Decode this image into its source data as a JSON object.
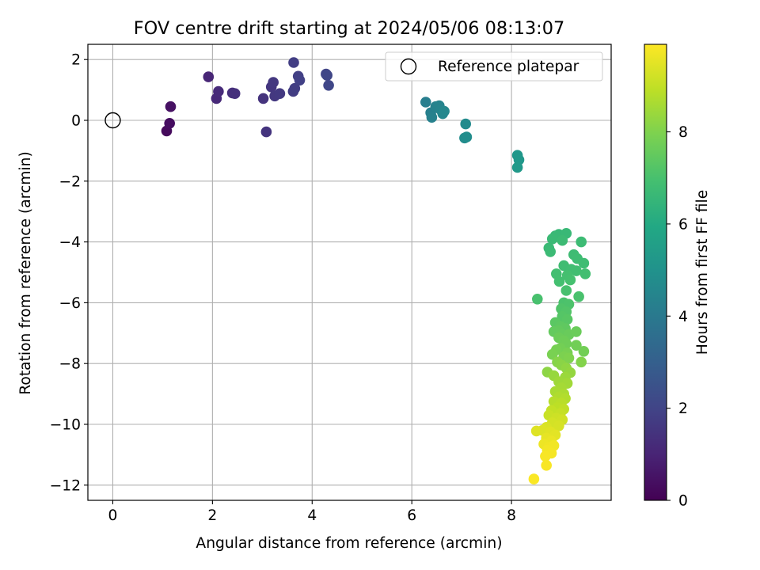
{
  "chart_data": {
    "type": "scatter",
    "title": "FOV centre drift starting at 2024/05/06 08:13:07",
    "xlabel": "Angular distance from reference (arcmin)",
    "ylabel": "Rotation from reference (arcmin)",
    "xlim": [
      -0.5,
      10.0
    ],
    "ylim": [
      -12.5,
      2.5
    ],
    "xticks": [
      "0",
      "2",
      "4",
      "6",
      "8"
    ],
    "yticks": [
      "2",
      "0",
      "−2",
      "−4",
      "−6",
      "−8",
      "−10",
      "−12"
    ],
    "grid": true,
    "legend": {
      "position": "top-right",
      "entries": [
        "Reference platepar"
      ]
    },
    "colorbar": {
      "label": "Hours from first FF file",
      "colormap": "viridis",
      "range": [
        0,
        9.9
      ],
      "ticks": [
        "0",
        "2",
        "4",
        "6",
        "8"
      ]
    },
    "reference": {
      "x": 0,
      "y": 0
    },
    "points": [
      {
        "x": 1.08,
        "y": -0.35,
        "h": 0.25
      },
      {
        "x": 1.14,
        "y": -0.1,
        "h": 0.35
      },
      {
        "x": 1.16,
        "y": 0.45,
        "h": 0.45
      },
      {
        "x": 1.92,
        "y": 1.43,
        "h": 1.05
      },
      {
        "x": 2.08,
        "y": 0.72,
        "h": 1.15
      },
      {
        "x": 2.12,
        "y": 0.95,
        "h": 1.2
      },
      {
        "x": 2.4,
        "y": 0.9,
        "h": 1.3
      },
      {
        "x": 2.45,
        "y": 0.88,
        "h": 1.35
      },
      {
        "x": 3.02,
        "y": 0.72,
        "h": 1.45
      },
      {
        "x": 3.08,
        "y": -0.38,
        "h": 1.5
      },
      {
        "x": 3.18,
        "y": 1.1,
        "h": 1.55
      },
      {
        "x": 3.22,
        "y": 1.25,
        "h": 1.6
      },
      {
        "x": 3.25,
        "y": 0.8,
        "h": 1.62
      },
      {
        "x": 3.35,
        "y": 0.88,
        "h": 1.65
      },
      {
        "x": 3.62,
        "y": 0.95,
        "h": 1.75
      },
      {
        "x": 3.65,
        "y": 1.05,
        "h": 1.78
      },
      {
        "x": 3.63,
        "y": 1.9,
        "h": 1.8
      },
      {
        "x": 3.72,
        "y": 1.45,
        "h": 1.85
      },
      {
        "x": 3.75,
        "y": 1.32,
        "h": 1.9
      },
      {
        "x": 4.28,
        "y": 1.52,
        "h": 2.0
      },
      {
        "x": 4.3,
        "y": 1.48,
        "h": 2.05
      },
      {
        "x": 4.33,
        "y": 1.15,
        "h": 2.1
      },
      {
        "x": 6.28,
        "y": 0.6,
        "h": 4.2
      },
      {
        "x": 6.38,
        "y": 0.25,
        "h": 4.25
      },
      {
        "x": 6.4,
        "y": 0.1,
        "h": 4.3
      },
      {
        "x": 6.48,
        "y": 0.45,
        "h": 4.35
      },
      {
        "x": 6.55,
        "y": 0.48,
        "h": 4.4
      },
      {
        "x": 6.58,
        "y": 0.35,
        "h": 4.45
      },
      {
        "x": 6.62,
        "y": 0.22,
        "h": 4.5
      },
      {
        "x": 6.65,
        "y": 0.3,
        "h": 4.55
      },
      {
        "x": 7.08,
        "y": -0.12,
        "h": 4.7
      },
      {
        "x": 7.06,
        "y": -0.58,
        "h": 4.75
      },
      {
        "x": 7.1,
        "y": -0.55,
        "h": 4.8
      },
      {
        "x": 8.12,
        "y": -1.15,
        "h": 5.2
      },
      {
        "x": 8.15,
        "y": -1.3,
        "h": 5.25
      },
      {
        "x": 8.12,
        "y": -1.55,
        "h": 5.3
      },
      {
        "x": 8.95,
        "y": -3.75,
        "h": 6.6
      },
      {
        "x": 9.1,
        "y": -3.72,
        "h": 6.62
      },
      {
        "x": 8.88,
        "y": -3.8,
        "h": 6.64
      },
      {
        "x": 8.82,
        "y": -3.9,
        "h": 6.66
      },
      {
        "x": 8.75,
        "y": -4.2,
        "h": 6.68
      },
      {
        "x": 8.78,
        "y": -4.32,
        "h": 6.7
      },
      {
        "x": 9.02,
        "y": -3.95,
        "h": 6.72
      },
      {
        "x": 9.4,
        "y": -4.0,
        "h": 6.74
      },
      {
        "x": 9.25,
        "y": -4.42,
        "h": 6.76
      },
      {
        "x": 9.32,
        "y": -4.55,
        "h": 6.78
      },
      {
        "x": 9.45,
        "y": -4.7,
        "h": 6.8
      },
      {
        "x": 9.05,
        "y": -4.78,
        "h": 6.82
      },
      {
        "x": 9.2,
        "y": -4.9,
        "h": 6.84
      },
      {
        "x": 9.3,
        "y": -4.95,
        "h": 6.86
      },
      {
        "x": 9.48,
        "y": -5.05,
        "h": 6.88
      },
      {
        "x": 8.9,
        "y": -5.05,
        "h": 6.9
      },
      {
        "x": 8.96,
        "y": -5.3,
        "h": 6.92
      },
      {
        "x": 9.12,
        "y": -5.1,
        "h": 6.94
      },
      {
        "x": 9.18,
        "y": -5.25,
        "h": 6.96
      },
      {
        "x": 9.1,
        "y": -5.6,
        "h": 6.98
      },
      {
        "x": 8.52,
        "y": -5.88,
        "h": 7.0
      },
      {
        "x": 9.35,
        "y": -5.8,
        "h": 7.02
      },
      {
        "x": 9.05,
        "y": -6.0,
        "h": 7.05
      },
      {
        "x": 9.15,
        "y": -6.05,
        "h": 7.1
      },
      {
        "x": 9.0,
        "y": -6.2,
        "h": 7.15
      },
      {
        "x": 9.1,
        "y": -6.3,
        "h": 7.2
      },
      {
        "x": 9.02,
        "y": -6.45,
        "h": 7.25
      },
      {
        "x": 9.12,
        "y": -6.55,
        "h": 7.3
      },
      {
        "x": 8.88,
        "y": -6.65,
        "h": 7.35
      },
      {
        "x": 8.98,
        "y": -6.78,
        "h": 7.4
      },
      {
        "x": 9.08,
        "y": -6.85,
        "h": 7.45
      },
      {
        "x": 8.95,
        "y": -6.92,
        "h": 7.5
      },
      {
        "x": 8.85,
        "y": -6.95,
        "h": 7.52
      },
      {
        "x": 9.02,
        "y": -7.05,
        "h": 7.55
      },
      {
        "x": 9.15,
        "y": -7.05,
        "h": 7.6
      },
      {
        "x": 9.3,
        "y": -6.95,
        "h": 7.62
      },
      {
        "x": 8.95,
        "y": -7.15,
        "h": 7.65
      },
      {
        "x": 9.05,
        "y": -7.25,
        "h": 7.7
      },
      {
        "x": 9.1,
        "y": -7.35,
        "h": 7.72
      },
      {
        "x": 9.3,
        "y": -7.4,
        "h": 7.75
      },
      {
        "x": 9.45,
        "y": -7.6,
        "h": 7.78
      },
      {
        "x": 8.98,
        "y": -7.5,
        "h": 7.8
      },
      {
        "x": 8.9,
        "y": -7.55,
        "h": 7.85
      },
      {
        "x": 9.12,
        "y": -7.65,
        "h": 7.88
      },
      {
        "x": 8.82,
        "y": -7.7,
        "h": 7.9
      },
      {
        "x": 9.05,
        "y": -7.78,
        "h": 7.95
      },
      {
        "x": 9.15,
        "y": -7.82,
        "h": 8.0
      },
      {
        "x": 9.4,
        "y": -7.95,
        "h": 8.05
      },
      {
        "x": 8.92,
        "y": -7.95,
        "h": 8.1
      },
      {
        "x": 9.0,
        "y": -8.05,
        "h": 8.15
      },
      {
        "x": 8.72,
        "y": -8.28,
        "h": 8.2
      },
      {
        "x": 9.1,
        "y": -8.15,
        "h": 8.25
      },
      {
        "x": 9.18,
        "y": -8.3,
        "h": 8.3
      },
      {
        "x": 8.85,
        "y": -8.4,
        "h": 8.35
      },
      {
        "x": 9.08,
        "y": -8.45,
        "h": 8.4
      },
      {
        "x": 8.95,
        "y": -8.6,
        "h": 8.45
      },
      {
        "x": 9.12,
        "y": -8.65,
        "h": 8.5
      },
      {
        "x": 9.0,
        "y": -8.8,
        "h": 8.55
      },
      {
        "x": 8.88,
        "y": -8.92,
        "h": 8.6
      },
      {
        "x": 9.05,
        "y": -9.0,
        "h": 8.65
      },
      {
        "x": 8.95,
        "y": -9.1,
        "h": 8.7
      },
      {
        "x": 9.08,
        "y": -9.15,
        "h": 8.75
      },
      {
        "x": 8.85,
        "y": -9.25,
        "h": 8.8
      },
      {
        "x": 9.0,
        "y": -9.3,
        "h": 8.85
      },
      {
        "x": 8.92,
        "y": -9.45,
        "h": 8.9
      },
      {
        "x": 9.05,
        "y": -9.5,
        "h": 8.95
      },
      {
        "x": 8.8,
        "y": -9.55,
        "h": 9.0
      },
      {
        "x": 8.98,
        "y": -9.65,
        "h": 9.05
      },
      {
        "x": 8.75,
        "y": -9.7,
        "h": 9.1
      },
      {
        "x": 8.9,
        "y": -9.8,
        "h": 9.15
      },
      {
        "x": 9.02,
        "y": -9.85,
        "h": 9.2
      },
      {
        "x": 8.82,
        "y": -9.95,
        "h": 9.25
      },
      {
        "x": 8.95,
        "y": -10.05,
        "h": 9.3
      },
      {
        "x": 8.7,
        "y": -10.1,
        "h": 9.35
      },
      {
        "x": 8.62,
        "y": -10.2,
        "h": 9.4
      },
      {
        "x": 8.5,
        "y": -10.22,
        "h": 9.42
      },
      {
        "x": 8.78,
        "y": -10.25,
        "h": 9.45
      },
      {
        "x": 8.88,
        "y": -10.35,
        "h": 9.5
      },
      {
        "x": 8.7,
        "y": -10.45,
        "h": 9.55
      },
      {
        "x": 8.8,
        "y": -10.55,
        "h": 9.6
      },
      {
        "x": 8.65,
        "y": -10.65,
        "h": 9.65
      },
      {
        "x": 8.75,
        "y": -10.75,
        "h": 9.7
      },
      {
        "x": 8.85,
        "y": -10.7,
        "h": 9.72
      },
      {
        "x": 8.72,
        "y": -10.85,
        "h": 9.75
      },
      {
        "x": 8.8,
        "y": -10.95,
        "h": 9.78
      },
      {
        "x": 8.68,
        "y": -11.05,
        "h": 9.8
      },
      {
        "x": 8.7,
        "y": -11.35,
        "h": 9.82
      },
      {
        "x": 8.45,
        "y": -11.8,
        "h": 9.85
      }
    ]
  }
}
